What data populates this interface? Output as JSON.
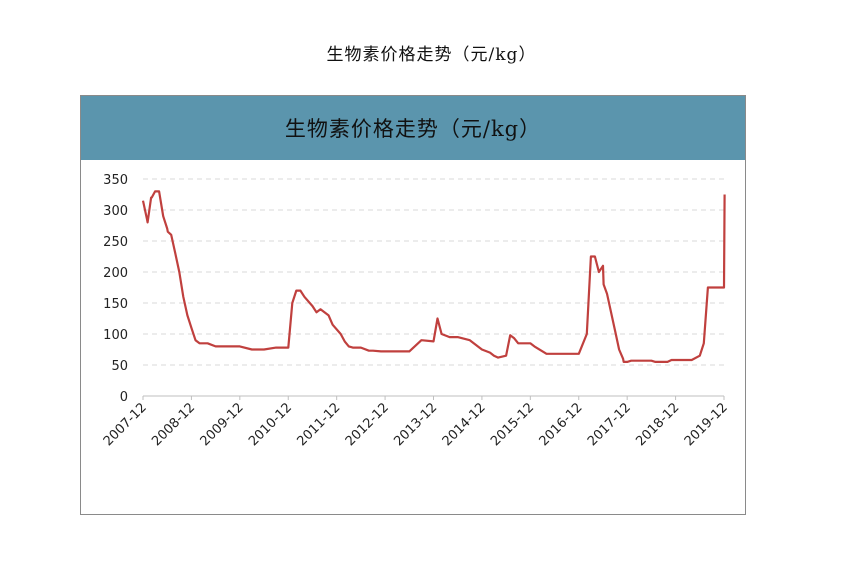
{
  "page": {
    "title": "生物素价格走势（元/kg）"
  },
  "colors": {
    "banner_bg": "#5b95ad",
    "line": "#c0403e",
    "grid": "#d9d9d9",
    "axis_text": "#222222"
  },
  "chart_data": {
    "type": "line",
    "title": "生物素价格走势（元/kg）",
    "xlabel": "",
    "ylabel": "",
    "ylim": [
      0,
      350
    ],
    "yticks": [
      0,
      50,
      100,
      150,
      200,
      250,
      300,
      350
    ],
    "xticks": [
      "2007-12",
      "2008-12",
      "2009-12",
      "2010-12",
      "2011-12",
      "2012-12",
      "2013-12",
      "2014-12",
      "2015-12",
      "2016-12",
      "2017-12",
      "2018-12",
      "2019-12"
    ],
    "grid": true,
    "legend": "none",
    "series": [
      {
        "x": [
          "2007-12",
          "2008-01",
          "2008-01",
          "2008-02",
          "2008-02",
          "2008-03",
          "2008-04",
          "2008-05",
          "2008-06",
          "2008-06",
          "2008-07",
          "2008-08",
          "2008-09",
          "2008-10",
          "2008-11",
          "2008-12",
          "2009-01",
          "2009-02",
          "2009-04",
          "2009-06",
          "2009-08",
          "2009-12",
          "2010-03",
          "2010-04",
          "2010-06",
          "2010-09",
          "2010-12",
          "2011-01",
          "2011-02",
          "2011-03",
          "2011-04",
          "2011-06",
          "2011-07",
          "2011-08",
          "2011-10",
          "2011-11",
          "2012-01",
          "2012-02",
          "2012-03",
          "2012-04",
          "2012-06",
          "2012-08",
          "2012-09",
          "2012-11",
          "2013-01",
          "2013-03",
          "2013-06",
          "2013-09",
          "2013-12",
          "2014-01",
          "2014-02",
          "2014-04",
          "2014-04",
          "2014-05",
          "2014-06",
          "2014-09",
          "2014-12",
          "2015-02",
          "2015-03",
          "2015-04",
          "2015-06",
          "2015-07",
          "2015-08",
          "2015-09",
          "2015-10",
          "2015-12",
          "2016-01",
          "2016-04",
          "2016-06",
          "2016-08",
          "2016-10",
          "2016-12",
          "2017-02",
          "2017-03",
          "2017-04",
          "2017-05",
          "2017-06",
          "2017-06",
          "2017-07",
          "2017-09",
          "2017-10",
          "2017-11",
          "2017-11",
          "2017-12",
          "2018-01",
          "2018-02",
          "2018-03",
          "2018-04",
          "2018-06",
          "2018-07",
          "2018-09",
          "2018-10",
          "2018-11",
          "2019-01",
          "2019-03",
          "2019-04",
          "2019-06",
          "2019-07",
          "2019-08",
          "2019-09",
          "2019-10",
          "2019-11",
          "2019-12",
          "2019-12"
        ],
        "values": [
          315,
          285,
          280,
          320,
          320,
          330,
          330,
          290,
          270,
          265,
          260,
          230,
          200,
          160,
          130,
          110,
          90,
          85,
          85,
          80,
          80,
          80,
          75,
          75,
          75,
          78,
          78,
          150,
          170,
          170,
          160,
          145,
          135,
          140,
          130,
          115,
          100,
          88,
          80,
          78,
          78,
          73,
          73,
          72,
          72,
          72,
          72,
          90,
          88,
          125,
          100,
          95,
          95,
          95,
          95,
          90,
          75,
          70,
          65,
          62,
          65,
          98,
          93,
          85,
          85,
          85,
          80,
          68,
          68,
          68,
          68,
          68,
          100,
          225,
          225,
          200,
          210,
          180,
          165,
          105,
          75,
          60,
          55,
          55,
          57,
          57,
          57,
          57,
          57,
          55,
          55,
          55,
          58,
          58,
          58,
          58,
          65,
          85,
          175,
          175,
          175,
          175,
          175,
          325
        ]
      }
    ]
  }
}
